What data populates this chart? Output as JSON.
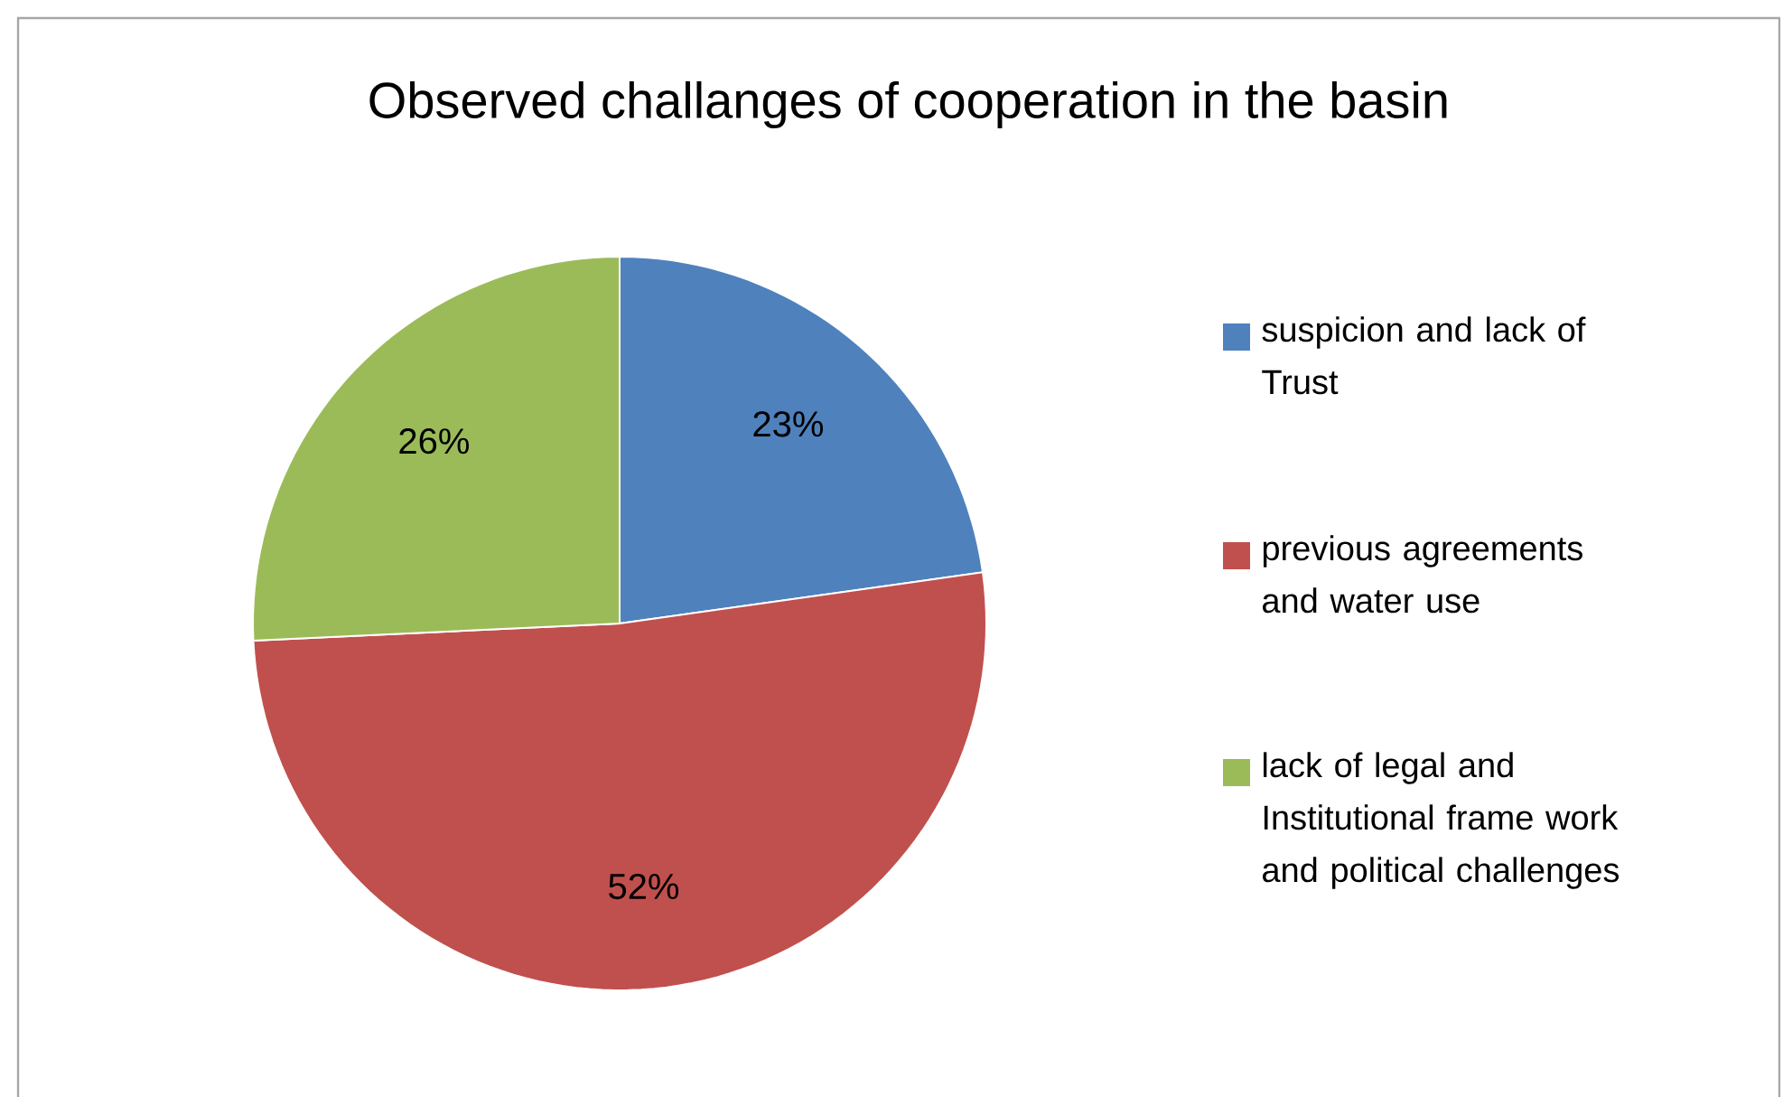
{
  "chart_data": {
    "type": "pie",
    "title": "Observed challanges of cooperation in the basin",
    "categories": [
      "suspicion and lack of Trust",
      "previous agreements and water use",
      "lack of legal and Institutional frame work and political challenges"
    ],
    "values": [
      23,
      52,
      26
    ],
    "colors": [
      "#4f81bd",
      "#c0504d",
      "#9bbb59"
    ],
    "value_labels": [
      "23%",
      "52%",
      "26%"
    ],
    "legend": "right"
  }
}
